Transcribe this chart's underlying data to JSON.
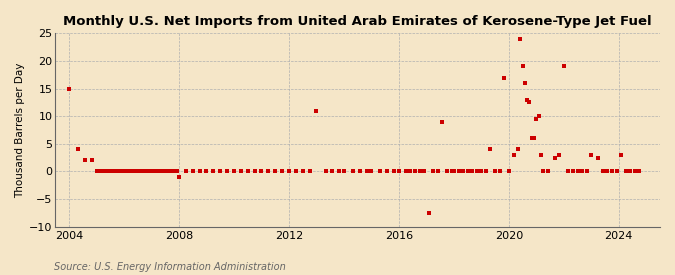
{
  "title": "Monthly U.S. Net Imports from United Arab Emirates of Kerosene-Type Jet Fuel",
  "ylabel": "Thousand Barrels per Day",
  "source": "Source: U.S. Energy Information Administration",
  "background_color": "#f5e6c8",
  "plot_bg_color": "#f5e6c8",
  "xlim": [
    2003.5,
    2025.5
  ],
  "ylim": [
    -10,
    25
  ],
  "yticks": [
    -10,
    -5,
    0,
    5,
    10,
    15,
    20,
    25
  ],
  "xticks": [
    2004,
    2008,
    2012,
    2016,
    2020,
    2024
  ],
  "point_color": "#cc0000",
  "point_size": 7,
  "data_points": [
    [
      2004.0,
      15.0
    ],
    [
      2004.33,
      4.0
    ],
    [
      2004.58,
      2.0
    ],
    [
      2004.83,
      2.0
    ],
    [
      2005.0,
      0.0
    ],
    [
      2005.08,
      0.0
    ],
    [
      2005.17,
      0.0
    ],
    [
      2005.25,
      0.0
    ],
    [
      2005.33,
      0.0
    ],
    [
      2005.42,
      0.0
    ],
    [
      2005.5,
      0.0
    ],
    [
      2005.58,
      0.0
    ],
    [
      2005.67,
      0.0
    ],
    [
      2005.75,
      0.0
    ],
    [
      2005.83,
      0.0
    ],
    [
      2005.92,
      0.0
    ],
    [
      2006.0,
      0.0
    ],
    [
      2006.08,
      0.0
    ],
    [
      2006.17,
      0.0
    ],
    [
      2006.25,
      0.0
    ],
    [
      2006.33,
      0.0
    ],
    [
      2006.42,
      0.0
    ],
    [
      2006.5,
      0.0
    ],
    [
      2006.58,
      0.0
    ],
    [
      2006.67,
      0.0
    ],
    [
      2006.75,
      0.0
    ],
    [
      2006.83,
      0.0
    ],
    [
      2006.92,
      0.0
    ],
    [
      2007.0,
      0.0
    ],
    [
      2007.08,
      0.0
    ],
    [
      2007.17,
      0.0
    ],
    [
      2007.25,
      0.0
    ],
    [
      2007.33,
      0.0
    ],
    [
      2007.42,
      0.0
    ],
    [
      2007.5,
      0.0
    ],
    [
      2007.58,
      0.0
    ],
    [
      2007.67,
      0.0
    ],
    [
      2007.75,
      0.0
    ],
    [
      2007.83,
      0.0
    ],
    [
      2007.92,
      0.0
    ],
    [
      2008.0,
      -1.0
    ],
    [
      2008.25,
      0.0
    ],
    [
      2008.5,
      0.0
    ],
    [
      2008.75,
      0.0
    ],
    [
      2009.0,
      0.0
    ],
    [
      2009.25,
      0.0
    ],
    [
      2009.5,
      0.0
    ],
    [
      2009.75,
      0.0
    ],
    [
      2010.0,
      0.0
    ],
    [
      2010.25,
      0.0
    ],
    [
      2010.5,
      0.0
    ],
    [
      2010.75,
      0.0
    ],
    [
      2011.0,
      0.0
    ],
    [
      2011.25,
      0.0
    ],
    [
      2011.5,
      0.0
    ],
    [
      2011.75,
      0.0
    ],
    [
      2012.0,
      0.0
    ],
    [
      2012.25,
      0.0
    ],
    [
      2012.5,
      0.0
    ],
    [
      2012.75,
      0.0
    ],
    [
      2013.0,
      11.0
    ],
    [
      2013.33,
      0.0
    ],
    [
      2013.58,
      0.0
    ],
    [
      2013.83,
      0.0
    ],
    [
      2014.0,
      0.0
    ],
    [
      2014.33,
      0.0
    ],
    [
      2014.58,
      0.0
    ],
    [
      2014.83,
      0.0
    ],
    [
      2015.0,
      0.0
    ],
    [
      2015.33,
      0.0
    ],
    [
      2015.58,
      0.0
    ],
    [
      2015.83,
      0.0
    ],
    [
      2016.0,
      0.0
    ],
    [
      2016.25,
      0.0
    ],
    [
      2016.42,
      0.0
    ],
    [
      2016.58,
      0.0
    ],
    [
      2016.75,
      0.0
    ],
    [
      2016.92,
      0.0
    ],
    [
      2017.08,
      -7.5
    ],
    [
      2017.25,
      0.0
    ],
    [
      2017.42,
      0.0
    ],
    [
      2017.58,
      9.0
    ],
    [
      2017.75,
      0.0
    ],
    [
      2017.92,
      0.0
    ],
    [
      2018.0,
      0.0
    ],
    [
      2018.17,
      0.0
    ],
    [
      2018.33,
      0.0
    ],
    [
      2018.5,
      0.0
    ],
    [
      2018.67,
      0.0
    ],
    [
      2018.83,
      0.0
    ],
    [
      2019.0,
      0.0
    ],
    [
      2019.17,
      0.0
    ],
    [
      2019.33,
      4.0
    ],
    [
      2019.5,
      0.0
    ],
    [
      2019.67,
      0.0
    ],
    [
      2019.83,
      17.0
    ],
    [
      2020.0,
      0.0
    ],
    [
      2020.17,
      3.0
    ],
    [
      2020.33,
      4.0
    ],
    [
      2020.42,
      24.0
    ],
    [
      2020.5,
      19.0
    ],
    [
      2020.58,
      16.0
    ],
    [
      2020.67,
      13.0
    ],
    [
      2020.75,
      12.5
    ],
    [
      2020.83,
      6.0
    ],
    [
      2020.92,
      6.0
    ],
    [
      2021.0,
      9.5
    ],
    [
      2021.08,
      10.0
    ],
    [
      2021.17,
      3.0
    ],
    [
      2021.25,
      0.0
    ],
    [
      2021.42,
      0.0
    ],
    [
      2021.67,
      2.5
    ],
    [
      2021.83,
      3.0
    ],
    [
      2022.0,
      19.0
    ],
    [
      2022.17,
      0.0
    ],
    [
      2022.33,
      0.0
    ],
    [
      2022.5,
      0.0
    ],
    [
      2022.67,
      0.0
    ],
    [
      2022.83,
      0.0
    ],
    [
      2023.0,
      3.0
    ],
    [
      2023.25,
      2.5
    ],
    [
      2023.42,
      0.0
    ],
    [
      2023.58,
      0.0
    ],
    [
      2023.75,
      0.0
    ],
    [
      2023.92,
      0.0
    ],
    [
      2024.08,
      3.0
    ],
    [
      2024.25,
      0.0
    ],
    [
      2024.42,
      0.0
    ],
    [
      2024.58,
      0.0
    ],
    [
      2024.75,
      0.0
    ]
  ]
}
